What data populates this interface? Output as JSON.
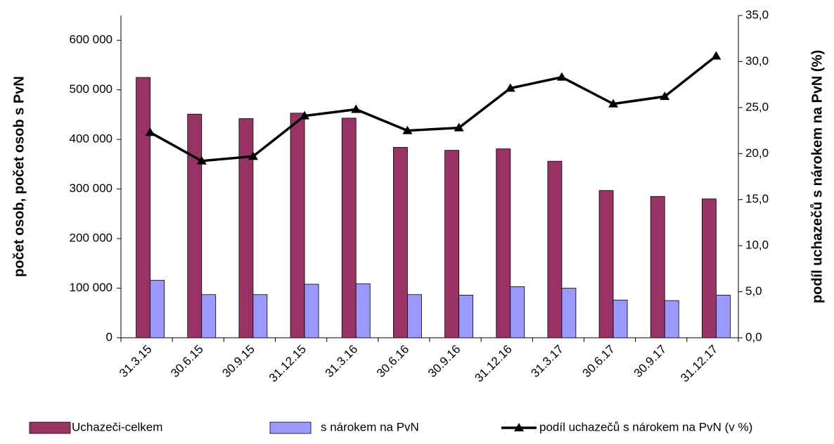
{
  "chart_data": {
    "type": "bar-line",
    "y_label": "počet osob, počet osob s PvN",
    "y2_label": "podíl uchazečů s nárokem na PvN (%)",
    "categories": [
      "31.3.15",
      "30.6.15",
      "30.9.15",
      "31.12.15",
      "31.3.16",
      "30.6.16",
      "30.9.16",
      "31.12.16",
      "31.3.17",
      "30.6.17",
      "30.9.17",
      "31.12.17"
    ],
    "series": [
      {
        "name": "Uchazeči-celkem",
        "color": "#993366",
        "type": "bar",
        "values": [
          525000,
          451000,
          442000,
          453000,
          443000,
          384000,
          378000,
          381000,
          356000,
          297000,
          285000,
          280000
        ]
      },
      {
        "name": "s nárokem na PvN",
        "color": "#9999ff",
        "type": "bar",
        "values": [
          116000,
          87000,
          87000,
          108000,
          109000,
          87000,
          86000,
          103000,
          100000,
          76000,
          75000,
          86000
        ]
      },
      {
        "name": "podíl uchazečů s nárokem na PvN (v %)",
        "color": "#000000",
        "type": "line",
        "axis": "y2",
        "values": [
          22.3,
          19.2,
          19.7,
          24.1,
          24.8,
          22.5,
          22.8,
          27.1,
          28.3,
          25.4,
          26.2,
          30.6
        ]
      }
    ],
    "ylim": [
      0,
      650000
    ],
    "yticks": [
      0,
      {
        "value": 100000,
        "label": "100 000"
      },
      {
        "value": 200000,
        "label": "200 000"
      },
      {
        "value": 300000,
        "label": "300 000"
      },
      {
        "value": 400000,
        "label": "400 000"
      },
      {
        "value": 500000,
        "label": "500 000"
      },
      {
        "value": 600000,
        "label": "600 000"
      }
    ],
    "y2lim": [
      0,
      35
    ],
    "y2ticks": [
      {
        "value": 0,
        "label": "0,0"
      },
      {
        "value": 5,
        "label": "5,0"
      },
      {
        "value": 10,
        "label": "10,0"
      },
      {
        "value": 15,
        "label": "15,0"
      },
      {
        "value": 20,
        "label": "20,0"
      },
      {
        "value": 25,
        "label": "25,0"
      },
      {
        "value": 30,
        "label": "30,0"
      },
      {
        "value": 35,
        "label": "35,0"
      }
    ],
    "legend": "bottom"
  }
}
